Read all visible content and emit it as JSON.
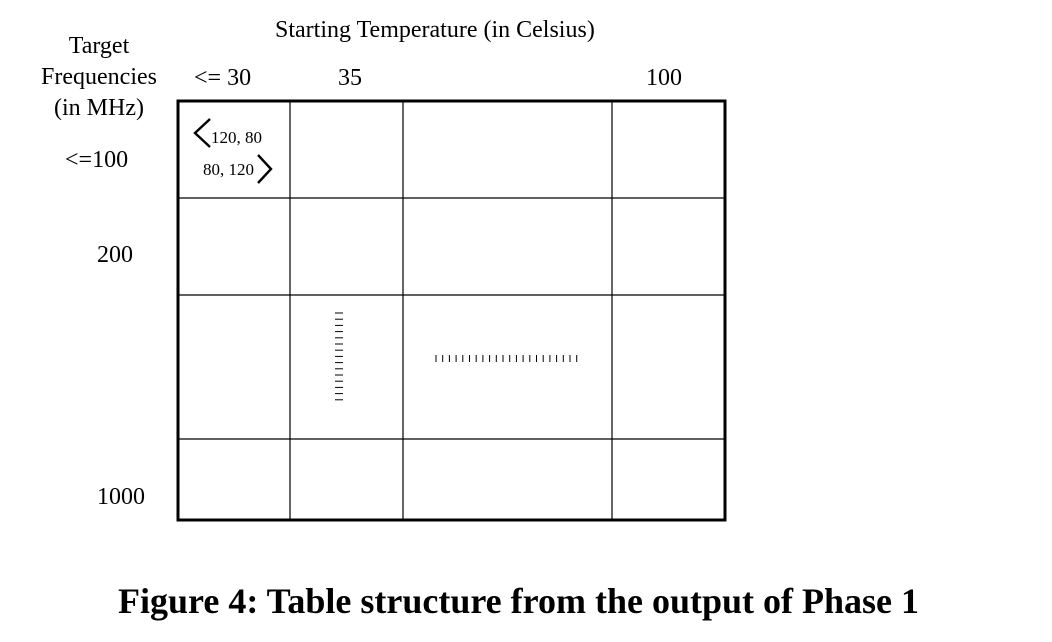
{
  "header": {
    "column_axis_title": "Starting Temperature (in Celsius)",
    "row_axis_title": [
      "Target",
      "Frequencies",
      "(in MHz)"
    ]
  },
  "columns": {
    "labels": [
      "<= 30",
      "35",
      "100"
    ]
  },
  "rows": {
    "labels": [
      "<=100",
      "200",
      "1000"
    ]
  },
  "cells": {
    "top_left_entry": {
      "line1": "120, 80",
      "line2": "80, 120"
    }
  },
  "caption": "Figure 4: Table structure from the output of Phase 1",
  "colors": {
    "ink": "#000000",
    "background": "#ffffff"
  }
}
